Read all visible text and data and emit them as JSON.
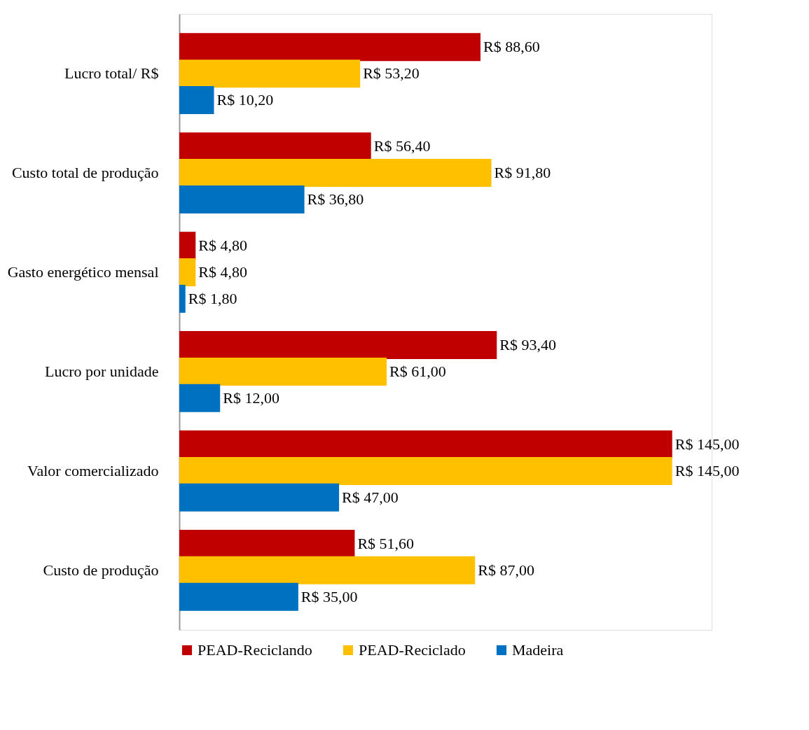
{
  "chart_data": {
    "type": "bar",
    "orientation": "horizontal",
    "legend": "bottom",
    "grid": false,
    "categories": [
      "Lucro total/ R$",
      "Custo total de produção",
      "Gasto energético mensal",
      "Lucro por unidade",
      "Valor comercializado",
      "Custo de produção"
    ],
    "series": [
      {
        "name": "PEAD-Reciclando",
        "color": "#c00000",
        "values": [
          88.6,
          56.4,
          4.8,
          93.4,
          145,
          51.6
        ],
        "value_labels": [
          "R$ 88,60",
          "R$ 56,40",
          "R$ 4,80",
          "R$ 93,40",
          "R$ 145,00",
          "R$ 51,60"
        ]
      },
      {
        "name": "PEAD-Reciclado",
        "color": "#ffc000",
        "values": [
          53.2,
          91.8,
          4.8,
          61,
          145,
          87
        ],
        "value_labels": [
          "R$ 53,20",
          "R$ 91,80",
          "R$ 4,80",
          "R$ 61,00",
          "R$ 145,00",
          "R$ 87,00"
        ]
      },
      {
        "name": "Madeira",
        "color": "#0070c0",
        "values": [
          10.2,
          36.8,
          1.8,
          12,
          47,
          35
        ],
        "value_labels": [
          "R$ 10,20",
          "R$ 36,80",
          "R$ 1,80",
          "R$ 12,00",
          "R$ 47,00",
          "R$ 35,00"
        ]
      }
    ]
  }
}
